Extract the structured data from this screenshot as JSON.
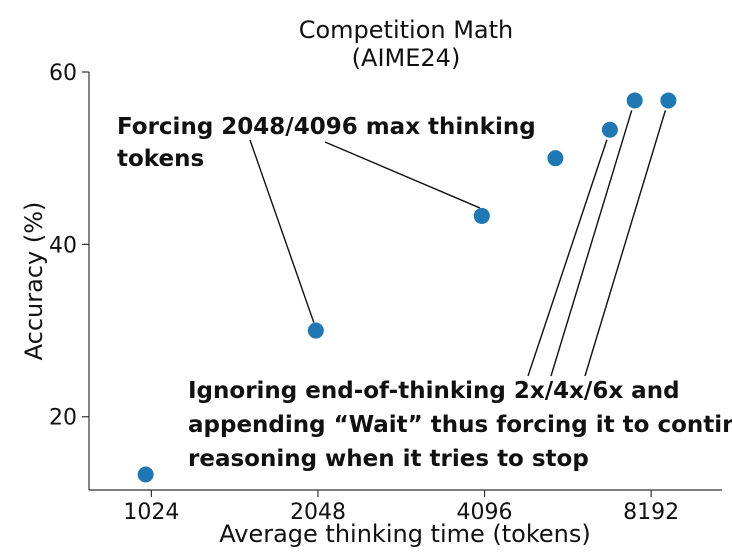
{
  "colors": {
    "point": "#1f77b4"
  },
  "chart_data": {
    "type": "scatter",
    "title": [
      "Competition Math",
      "(AIME24)"
    ],
    "xlabel": "Average thinking time (tokens)",
    "ylabel": "Accuracy (%)",
    "x_scale": "log2",
    "xlim": [
      790,
      11000
    ],
    "ylim": [
      11.5,
      60
    ],
    "x_ticks": [
      {
        "value": 1024,
        "label": "1024"
      },
      {
        "value": 2048,
        "label": "2048"
      },
      {
        "value": 4096,
        "label": "4096"
      },
      {
        "value": 8192,
        "label": "8192"
      }
    ],
    "y_ticks": [
      {
        "value": 20,
        "label": "20"
      },
      {
        "value": 40,
        "label": "40"
      },
      {
        "value": 60,
        "label": "60"
      }
    ],
    "grid": false,
    "series": [
      {
        "points": [
          {
            "x": 1000,
            "y": 13.3
          },
          {
            "x": 2030,
            "y": 30.0
          },
          {
            "x": 4050,
            "y": 43.3
          },
          {
            "x": 5500,
            "y": 50.0
          },
          {
            "x": 6900,
            "y": 53.3
          },
          {
            "x": 7650,
            "y": 56.7
          },
          {
            "x": 8800,
            "y": 56.7
          }
        ]
      }
    ],
    "annotations": [
      {
        "lines": [
          "Forcing 2048/4096 max thinking",
          "tokens"
        ],
        "targets": [
          1,
          2
        ]
      },
      {
        "lines": [
          "Ignoring end-of-thinking 2x/4x/6x and",
          "appending “Wait” thus forcing it to continue",
          "reasoning when it tries to stop"
        ],
        "targets": [
          4,
          5,
          6
        ]
      }
    ]
  }
}
